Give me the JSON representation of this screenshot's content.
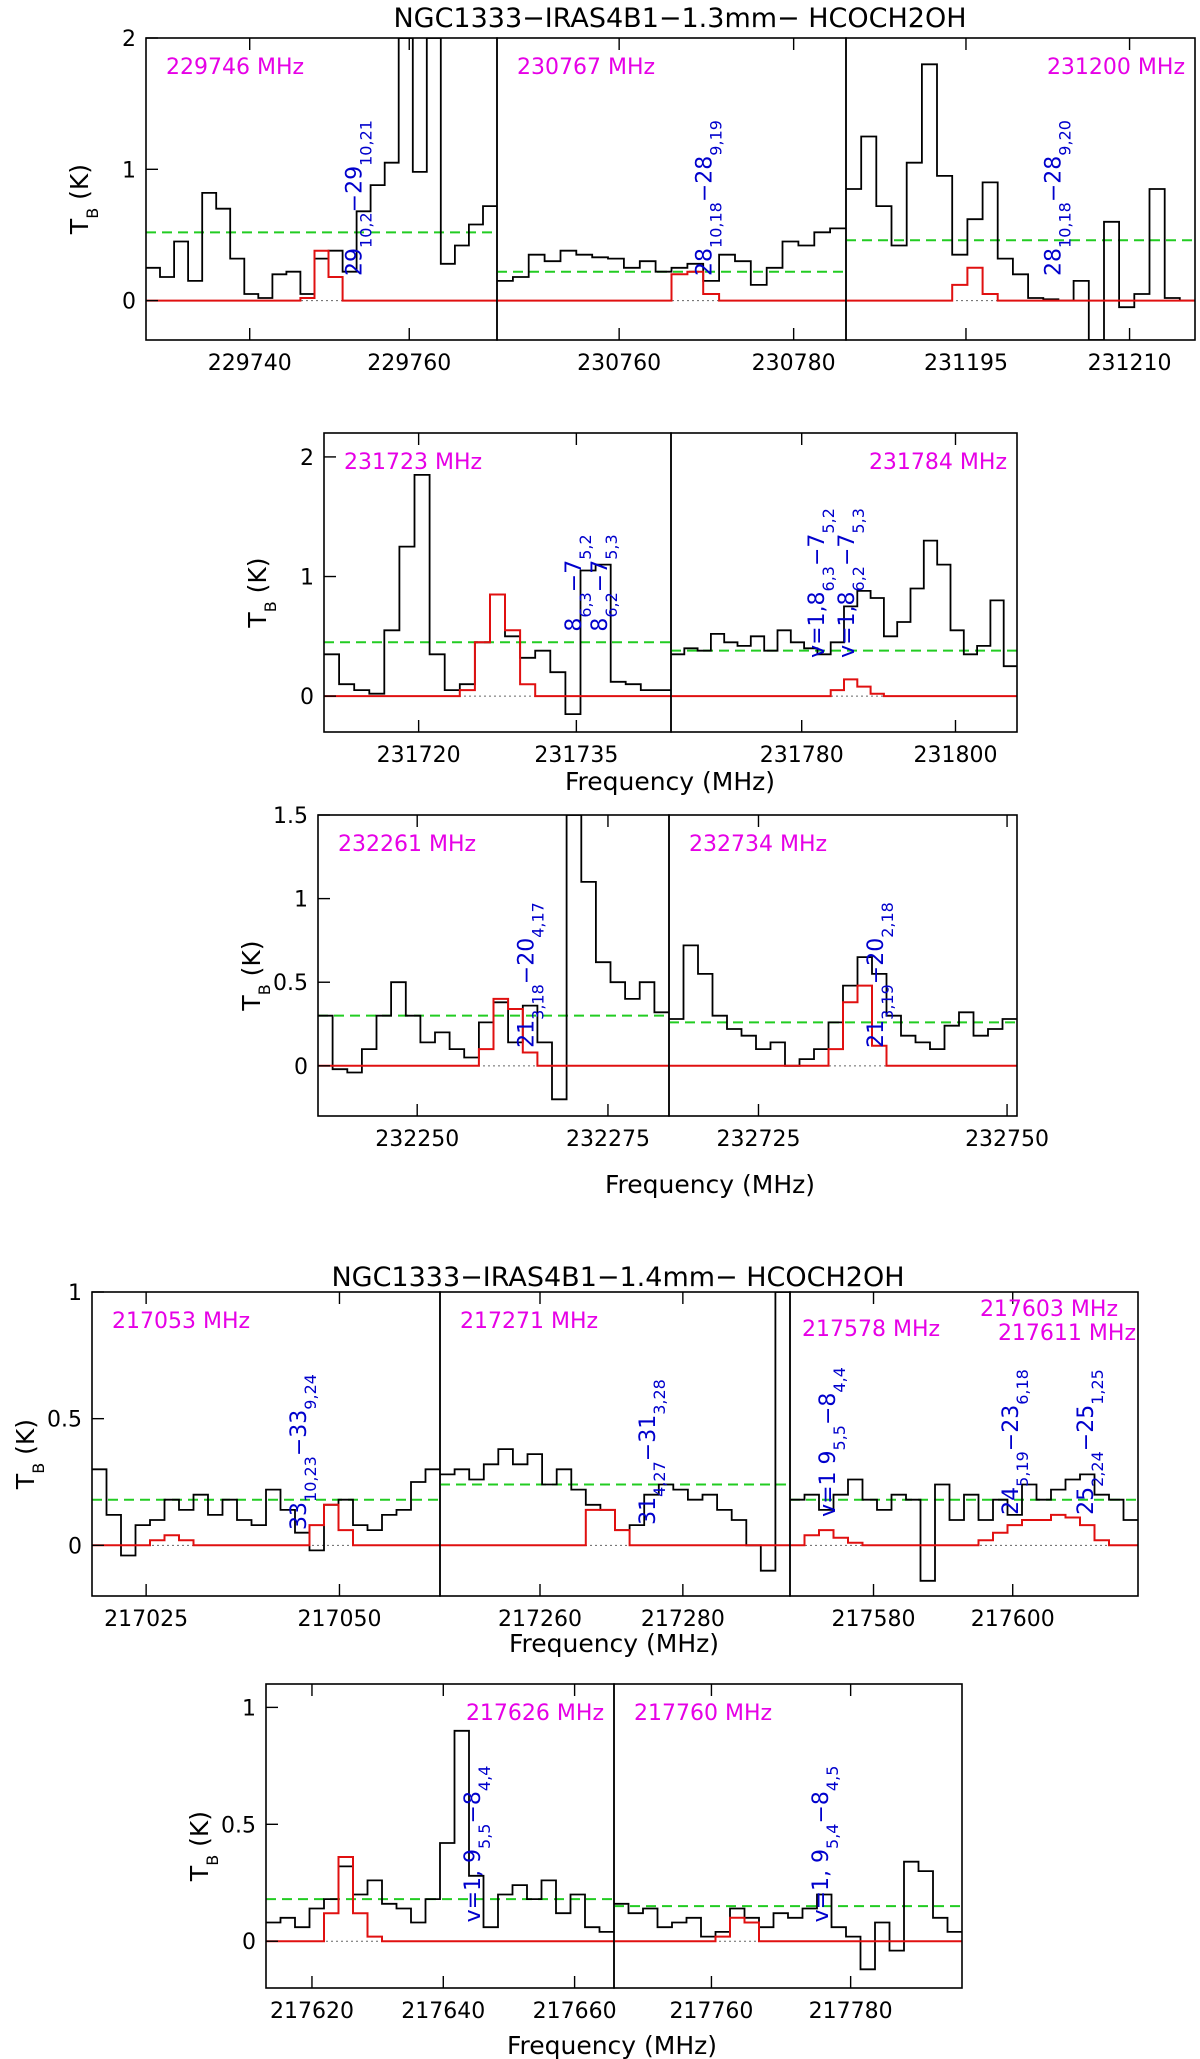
{
  "colors": {
    "observed": "#000000",
    "model": "#e01010",
    "threshold": "#22cc22",
    "freq_label": "#e600e6",
    "transition": "#0000cc"
  },
  "figures": [
    {
      "title": "NGC1333−IRAS4B1−1.3mm− HCOCH2OH"
    },
    {
      "title": "NGC1333−IRAS4B1−1.4mm− HCOCH2OH"
    }
  ],
  "chart_data": [
    {
      "type": "line",
      "freq": "229746 MHz",
      "transition": "29_{10,2}−29_{10,21}",
      "xlabel": "",
      "ylabel": "T_B (K)",
      "xlim": [
        229727,
        229771
      ],
      "ylim": [
        -0.3,
        2
      ],
      "xticks": [
        229740,
        229760
      ],
      "yticks": [
        0,
        1,
        2
      ],
      "threshold": 0.52,
      "observed": [
        0.25,
        0.18,
        0.45,
        0.15,
        0.82,
        0.7,
        0.32,
        0.05,
        0.02,
        0.2,
        0.22,
        0.05,
        0.32,
        0.38,
        0.22,
        0.68,
        0.88,
        1.05,
        2.8,
        0.98,
        2.8,
        0.28,
        0.42,
        0.58,
        0.72
      ],
      "model": [
        0,
        0,
        0,
        0,
        0,
        0,
        0,
        0,
        0,
        0,
        0,
        0.02,
        0.38,
        0.18,
        0,
        0,
        0,
        0,
        0,
        0,
        0,
        0,
        0,
        0,
        0
      ]
    },
    {
      "type": "line",
      "freq": "230767 MHz",
      "transition": "28_{10,18}−28_{9,19}",
      "xlabel": "",
      "ylabel": "",
      "xlim": [
        230746,
        230786
      ],
      "ylim": [
        -0.3,
        2
      ],
      "xticks": [
        230760,
        230780
      ],
      "yticks": [],
      "threshold": 0.22,
      "observed": [
        0.15,
        0.18,
        0.35,
        0.3,
        0.38,
        0.35,
        0.33,
        0.32,
        0.25,
        0.3,
        0.22,
        0.25,
        0.28,
        0.15,
        0.35,
        0.3,
        0.12,
        0.25,
        0.45,
        0.42,
        0.52,
        0.55
      ],
      "model": [
        0,
        0,
        0,
        0,
        0,
        0,
        0,
        0,
        0,
        0,
        0,
        0.2,
        0.22,
        0.05,
        0,
        0,
        0,
        0,
        0,
        0,
        0,
        0
      ]
    },
    {
      "type": "line",
      "freq": "231200 MHz",
      "transition": "28_{10,18}−28_{9,20}",
      "xlabel": "",
      "ylabel": "",
      "xlim": [
        231184,
        231216
      ],
      "ylim": [
        -0.3,
        2
      ],
      "xticks": [
        231195,
        231210
      ],
      "yticks": [],
      "threshold": 0.46,
      "observed": [
        0.85,
        1.25,
        0.72,
        0.42,
        1.05,
        1.8,
        0.95,
        0.35,
        0.62,
        0.9,
        0.32,
        0.2,
        0.02,
        0.01,
        0.0,
        0.15,
        -0.3,
        0.6,
        -0.05,
        0.05,
        0.85,
        0.02,
        0.0
      ],
      "model": [
        0,
        0,
        0,
        0,
        0,
        0,
        0,
        0.12,
        0.25,
        0.05,
        0,
        0,
        0,
        0,
        0,
        0,
        0,
        0,
        0,
        0,
        0,
        0,
        0
      ]
    },
    {
      "type": "line",
      "freq": "231723 MHz",
      "transition": "8_{6,3}−7_{5,2} 8_{6,2}−7_{5,3}",
      "xlabel": "Frequency (MHz)",
      "ylabel": "T_B (K)",
      "xlim": [
        231711,
        231744
      ],
      "ylim": [
        -0.3,
        2.2
      ],
      "xticks": [
        231720,
        231735
      ],
      "yticks": [
        0,
        1,
        2
      ],
      "threshold": 0.45,
      "observed": [
        0.35,
        0.1,
        0.05,
        0.02,
        0.55,
        1.25,
        1.85,
        0.35,
        0.05,
        0.1,
        0.45,
        0.85,
        0.5,
        0.32,
        0.38,
        0.2,
        -0.15,
        1.05,
        1.1,
        0.12,
        0.1,
        0.05,
        0.05
      ],
      "model": [
        0,
        0,
        0,
        0,
        0,
        0,
        0,
        0,
        0,
        0.05,
        0.45,
        0.85,
        0.55,
        0.1,
        0,
        0,
        0,
        0,
        0,
        0,
        0,
        0,
        0
      ]
    },
    {
      "type": "line",
      "freq": "231784 MHz",
      "transition": "v=1,8_{6,3}−7_{5,2} v=1,8_{6,2}−7_{5,3}",
      "xlabel": "",
      "ylabel": "",
      "xlim": [
        231763,
        231808
      ],
      "ylim": [
        -0.3,
        2.2
      ],
      "xticks": [
        231780,
        231800
      ],
      "yticks": [],
      "threshold": 0.38,
      "observed": [
        0.35,
        0.4,
        0.38,
        0.52,
        0.45,
        0.42,
        0.5,
        0.38,
        0.55,
        0.45,
        0.4,
        0.35,
        0.45,
        0.75,
        0.88,
        0.82,
        0.5,
        0.62,
        0.9,
        1.3,
        1.1,
        0.55,
        0.35,
        0.42,
        0.8,
        0.25
      ],
      "model": [
        0,
        0,
        0,
        0,
        0,
        0,
        0,
        0,
        0,
        0,
        0,
        0,
        0.05,
        0.14,
        0.08,
        0.02,
        0,
        0,
        0,
        0,
        0,
        0,
        0,
        0,
        0,
        0
      ]
    },
    {
      "type": "line",
      "freq": "232261 MHz",
      "transition": "21_{3,18}−20_{4,17}",
      "xlabel": "",
      "ylabel": "T_B (K)",
      "xlim": [
        232237,
        232283
      ],
      "ylim": [
        -0.3,
        1.5
      ],
      "xticks": [
        232250,
        232275
      ],
      "yticks": [
        0,
        0.5,
        1,
        1.5
      ],
      "threshold": 0.3,
      "observed": [
        0.3,
        -0.02,
        -0.04,
        0.1,
        0.3,
        0.5,
        0.3,
        0.14,
        0.2,
        0.1,
        0.05,
        0.26,
        0.38,
        0.14,
        0.36,
        0.14,
        -0.2,
        2.0,
        1.1,
        0.62,
        0.5,
        0.4,
        0.5,
        0.32
      ],
      "model": [
        0,
        0,
        0,
        0,
        0,
        0,
        0,
        0,
        0,
        0,
        0,
        0.1,
        0.4,
        0.34,
        0.08,
        0,
        0,
        0,
        0,
        0,
        0,
        0,
        0,
        0
      ]
    },
    {
      "type": "line",
      "freq": "232734 MHz",
      "transition": "21_{3,19}−20_{2,18}",
      "xlabel": "Frequency (MHz)",
      "ylabel": "",
      "xlim": [
        232716,
        232751
      ],
      "ylim": [
        -0.3,
        1.5
      ],
      "xticks": [
        232725,
        232750
      ],
      "yticks": [],
      "threshold": 0.26,
      "observed": [
        0.28,
        0.72,
        0.55,
        0.3,
        0.22,
        0.18,
        0.1,
        0.14,
        0.0,
        0.04,
        0.1,
        0.26,
        0.48,
        0.65,
        0.55,
        0.3,
        0.18,
        0.14,
        0.1,
        0.24,
        0.32,
        0.18,
        0.22,
        0.28
      ],
      "model": [
        0,
        0,
        0,
        0,
        0,
        0,
        0,
        0,
        0,
        0,
        0,
        0.1,
        0.38,
        0.48,
        0.12,
        0,
        0,
        0,
        0,
        0,
        0,
        0,
        0,
        0
      ]
    },
    {
      "type": "line",
      "freq": "217053 MHz",
      "transition": "33_{10,23}−33_{9,24}",
      "xlabel": "",
      "ylabel": "T_B (K)",
      "xlim": [
        217018,
        217063
      ],
      "ylim": [
        -0.2,
        1
      ],
      "xticks": [
        217025,
        217050
      ],
      "yticks": [
        0,
        0.5,
        1
      ],
      "threshold": 0.18,
      "observed": [
        0.3,
        0.12,
        -0.04,
        0.08,
        0.1,
        0.18,
        0.14,
        0.2,
        0.12,
        0.18,
        0.1,
        0.08,
        0.22,
        0.14,
        0.05,
        -0.02,
        0.16,
        0.18,
        0.08,
        0.06,
        0.12,
        0.14,
        0.25,
        0.3
      ],
      "model": [
        0,
        0,
        0,
        0,
        0.02,
        0.04,
        0.02,
        0,
        0,
        0,
        0,
        0,
        0,
        0,
        0,
        0.08,
        0.16,
        0.06,
        0,
        0,
        0,
        0,
        0,
        0
      ]
    },
    {
      "type": "line",
      "freq": "217271 MHz",
      "transition": "31_{4,27}−31_{3,28}",
      "xlabel": "Frequency (MHz)",
      "ylabel": "",
      "xlim": [
        217246,
        217295
      ],
      "ylim": [
        -0.2,
        1
      ],
      "xticks": [
        217260,
        217280
      ],
      "yticks": [],
      "threshold": 0.24,
      "observed": [
        0.28,
        0.3,
        0.26,
        0.32,
        0.38,
        0.32,
        0.36,
        0.24,
        0.3,
        0.22,
        0.16,
        0.14,
        0.06,
        0.08,
        0.2,
        0.24,
        0.22,
        0.18,
        0.2,
        0.14,
        0.1,
        0.0,
        -0.1,
        1.2
      ],
      "model": [
        0,
        0,
        0,
        0,
        0,
        0,
        0,
        0,
        0,
        0,
        0.14,
        0.14,
        0.06,
        0,
        0,
        0,
        0,
        0,
        0,
        0,
        0,
        0,
        0,
        0
      ]
    },
    {
      "type": "line",
      "freq": "217578 MHz 217603 MHz 217611 MHz",
      "transition": "v=1 9_{5,5}−8_{4,4}; 24_{5,19}−23_{6,18}; 25_{2,24}−25_{1,25}",
      "xlabel": "",
      "ylabel": "",
      "xlim": [
        217568,
        217618
      ],
      "ylim": [
        -0.2,
        1
      ],
      "xticks": [
        217580,
        217600
      ],
      "yticks": [],
      "threshold": 0.18,
      "observed": [
        0.18,
        0.2,
        0.14,
        0.2,
        0.26,
        0.18,
        0.14,
        0.2,
        0.18,
        -0.14,
        0.24,
        0.1,
        0.2,
        0.1,
        0.18,
        0.12,
        0.24,
        0.18,
        0.22,
        0.26,
        0.28,
        0.2,
        0.18,
        0.1
      ],
      "model": [
        0,
        0.04,
        0.06,
        0.03,
        0.01,
        0,
        0,
        0,
        0,
        0,
        0,
        0,
        0,
        0.02,
        0.05,
        0.08,
        0.1,
        0.1,
        0.12,
        0.11,
        0.08,
        0.02,
        0,
        0
      ]
    },
    {
      "type": "line",
      "freq": "217626 MHz",
      "transition": "v=1, 9_{5,5}−8_{4,4}",
      "xlabel": "Frequency (MHz)",
      "ylabel": "T_B (K)",
      "xlim": [
        217613,
        217666
      ],
      "ylim": [
        -0.2,
        1.1
      ],
      "xticks": [
        217620,
        217640,
        217660
      ],
      "yticks": [
        0,
        0.5,
        1
      ],
      "threshold": 0.18,
      "observed": [
        0.08,
        0.1,
        0.06,
        0.14,
        0.18,
        0.32,
        0.2,
        0.26,
        0.16,
        0.14,
        0.08,
        0.18,
        0.42,
        0.9,
        0.28,
        0.06,
        0.2,
        0.24,
        0.18,
        0.26,
        0.12,
        0.2,
        0.06,
        0.04
      ],
      "model": [
        0,
        0,
        0,
        0,
        0.12,
        0.36,
        0.12,
        0.02,
        0,
        0,
        0,
        0,
        0,
        0,
        0,
        0,
        0,
        0,
        0,
        0,
        0,
        0,
        0,
        0
      ]
    },
    {
      "type": "line",
      "freq": "217760 MHz",
      "transition": "v=1, 9_{5,4}−8_{4,5}",
      "xlabel": "",
      "ylabel": "",
      "xlim": [
        217746,
        217796
      ],
      "ylim": [
        -0.2,
        1.1
      ],
      "xticks": [
        217760,
        217780
      ],
      "yticks": [],
      "threshold": 0.15,
      "observed": [
        0.16,
        0.12,
        0.14,
        0.06,
        0.08,
        0.1,
        0.02,
        0.04,
        0.14,
        0.1,
        0.06,
        0.12,
        0.1,
        0.14,
        0.2,
        0.06,
        0.02,
        -0.12,
        0.08,
        -0.04,
        0.34,
        0.3,
        0.1,
        0.04
      ],
      "model": [
        0,
        0,
        0,
        0,
        0,
        0,
        0,
        0.02,
        0.1,
        0.08,
        0,
        0,
        0,
        0,
        0,
        0,
        0,
        0,
        0,
        0,
        0,
        0,
        0,
        0
      ]
    }
  ]
}
